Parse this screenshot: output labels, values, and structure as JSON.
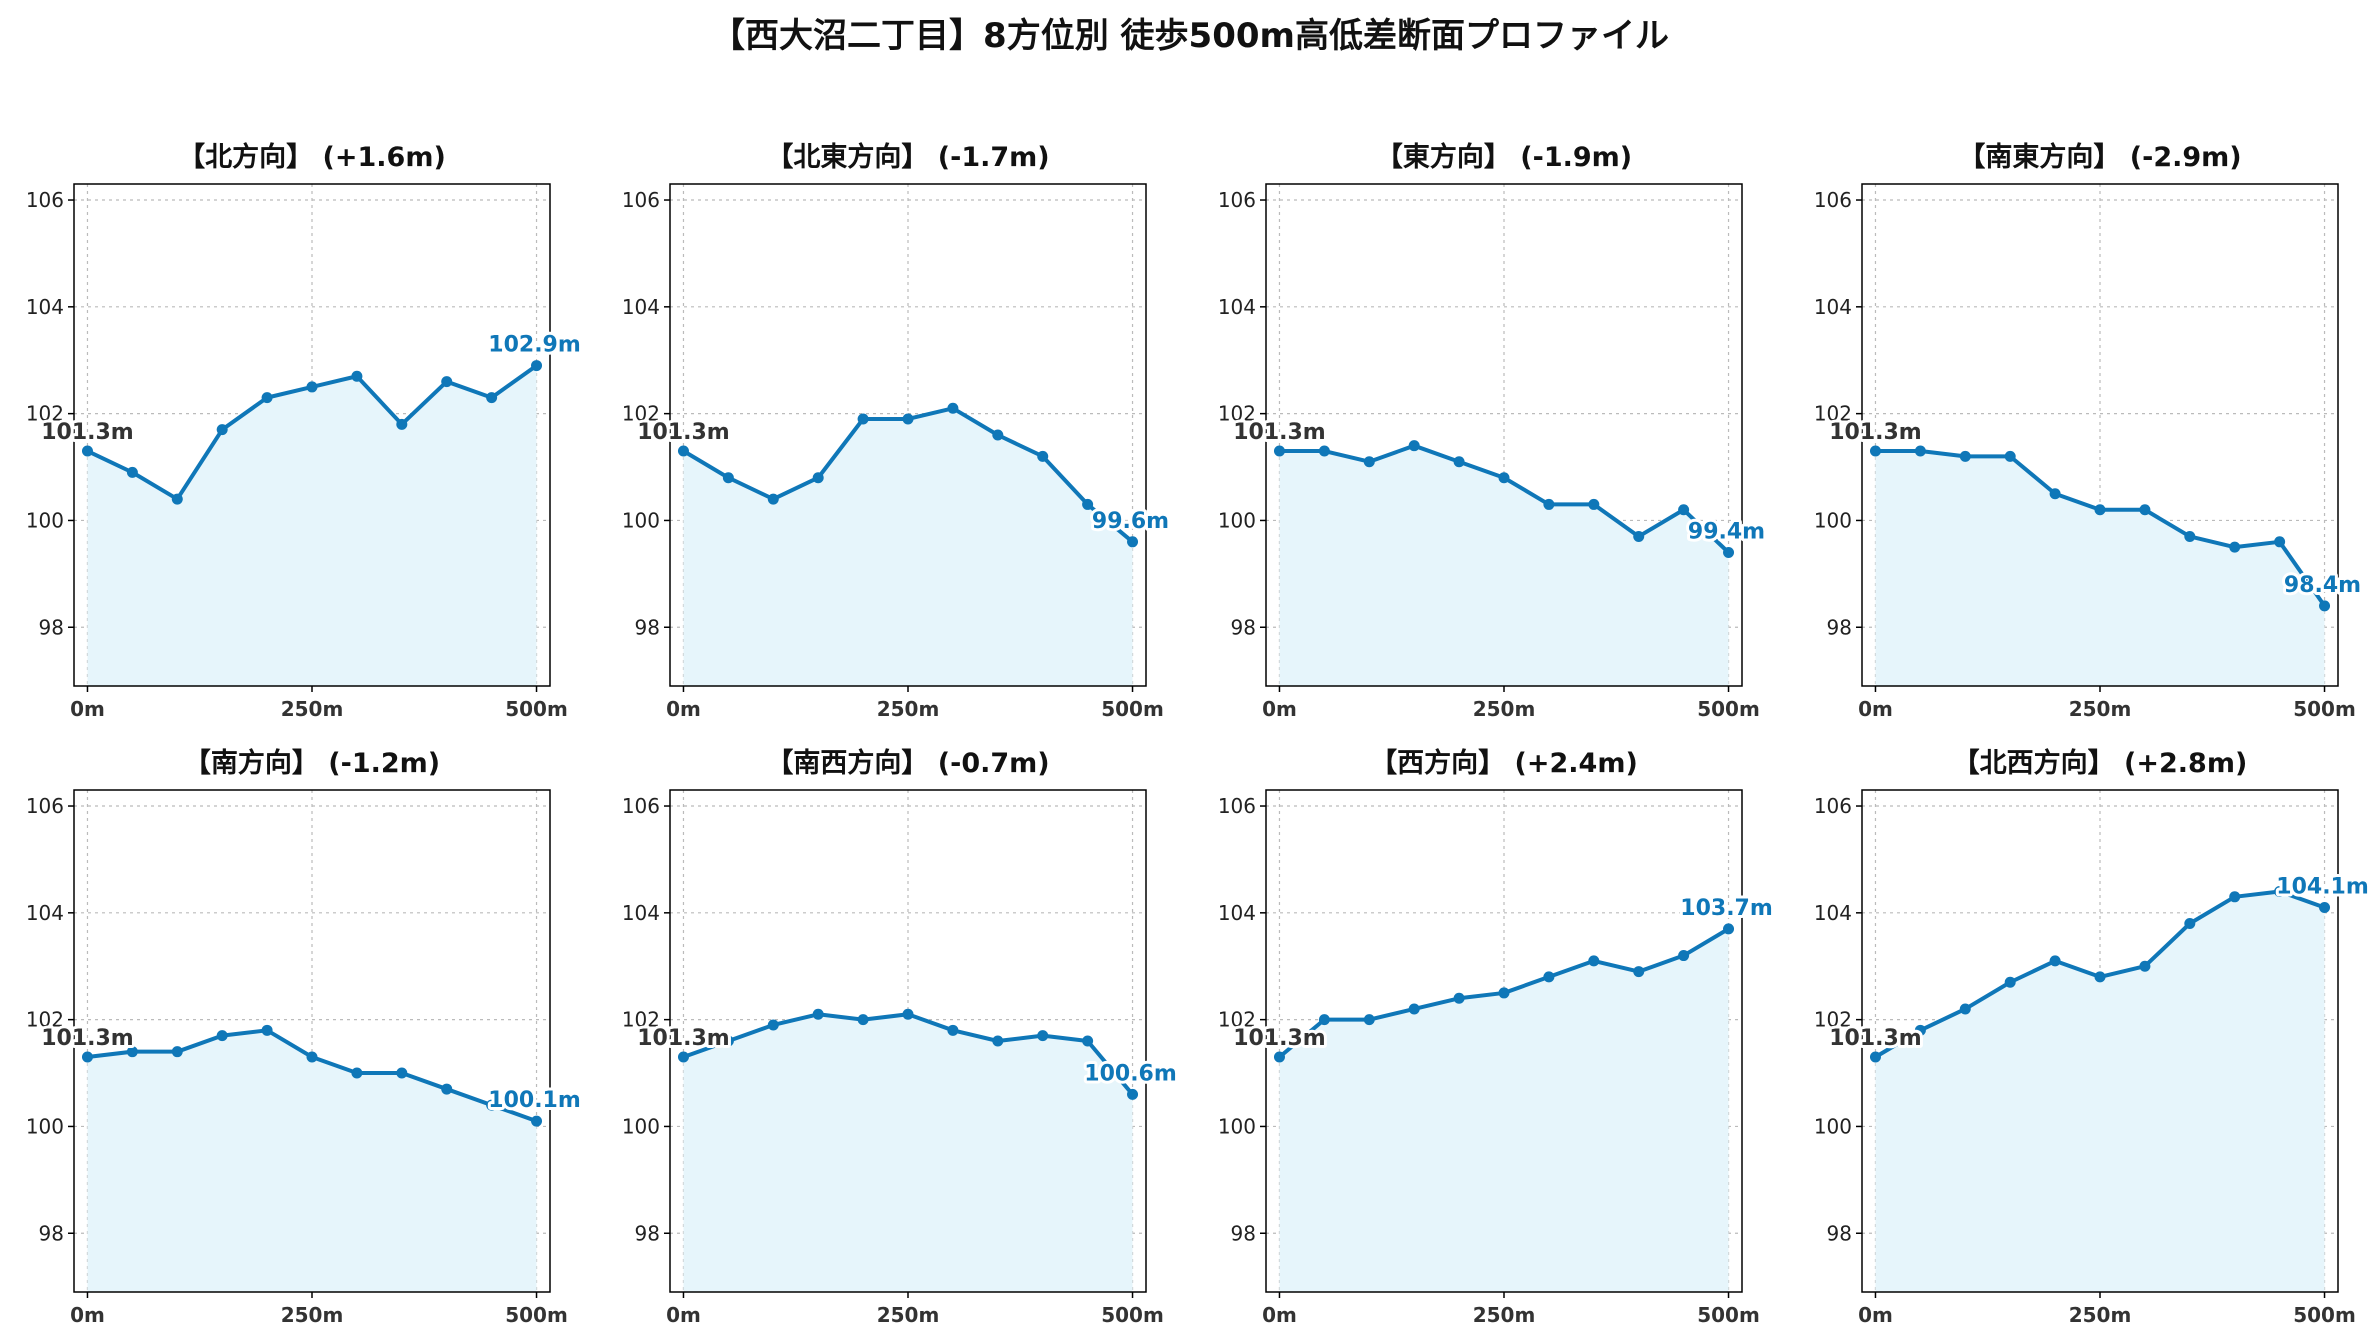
{
  "title": "【西大沼二丁目】8方位別 徒歩500m高低差断面プロファイル",
  "colors": {
    "line": "#0f77b8",
    "fill": "#e6f5fb",
    "grid": "#bbbbbb",
    "axis": "#000000"
  },
  "chart_data": [
    {
      "type": "area",
      "title": "【北方向】 (+1.6m)",
      "x": [
        0,
        50,
        100,
        150,
        200,
        250,
        300,
        350,
        400,
        450,
        500
      ],
      "values": [
        101.3,
        100.9,
        100.4,
        101.7,
        102.3,
        102.5,
        102.7,
        101.8,
        102.6,
        102.3,
        102.9
      ],
      "xticks": [
        "0m",
        "250m",
        "500m"
      ],
      "yticks": [
        "98",
        "100",
        "102",
        "104",
        "106"
      ],
      "xlim": [
        -15,
        515
      ],
      "ylim": [
        96.9,
        106.3
      ],
      "start_label": "101.3m",
      "end_label": "102.9m",
      "grid": true
    },
    {
      "type": "area",
      "title": "【北東方向】 (-1.7m)",
      "x": [
        0,
        50,
        100,
        150,
        200,
        250,
        300,
        350,
        400,
        450,
        500
      ],
      "values": [
        101.3,
        100.8,
        100.4,
        100.8,
        101.9,
        101.9,
        102.1,
        101.6,
        101.2,
        100.3,
        99.6
      ],
      "xticks": [
        "0m",
        "250m",
        "500m"
      ],
      "yticks": [
        "98",
        "100",
        "102",
        "104",
        "106"
      ],
      "xlim": [
        -15,
        515
      ],
      "ylim": [
        96.9,
        106.3
      ],
      "start_label": "101.3m",
      "end_label": "99.6m",
      "grid": true
    },
    {
      "type": "area",
      "title": "【東方向】 (-1.9m)",
      "x": [
        0,
        50,
        100,
        150,
        200,
        250,
        300,
        350,
        400,
        450,
        500
      ],
      "values": [
        101.3,
        101.3,
        101.1,
        101.4,
        101.1,
        100.8,
        100.3,
        100.3,
        99.7,
        100.2,
        99.4
      ],
      "xticks": [
        "0m",
        "250m",
        "500m"
      ],
      "yticks": [
        "98",
        "100",
        "102",
        "104",
        "106"
      ],
      "xlim": [
        -15,
        515
      ],
      "ylim": [
        96.9,
        106.3
      ],
      "start_label": "101.3m",
      "end_label": "99.4m",
      "grid": true
    },
    {
      "type": "area",
      "title": "【南東方向】 (-2.9m)",
      "x": [
        0,
        50,
        100,
        150,
        200,
        250,
        300,
        350,
        400,
        450,
        500
      ],
      "values": [
        101.3,
        101.3,
        101.2,
        101.2,
        100.5,
        100.2,
        100.2,
        99.7,
        99.5,
        99.6,
        98.4
      ],
      "xticks": [
        "0m",
        "250m",
        "500m"
      ],
      "yticks": [
        "98",
        "100",
        "102",
        "104",
        "106"
      ],
      "xlim": [
        -15,
        515
      ],
      "ylim": [
        96.9,
        106.3
      ],
      "start_label": "101.3m",
      "end_label": "98.4m",
      "grid": true
    },
    {
      "type": "area",
      "title": "【南方向】 (-1.2m)",
      "x": [
        0,
        50,
        100,
        150,
        200,
        250,
        300,
        350,
        400,
        450,
        500
      ],
      "values": [
        101.3,
        101.4,
        101.4,
        101.7,
        101.8,
        101.3,
        101.0,
        101.0,
        100.7,
        100.4,
        100.1
      ],
      "xticks": [
        "0m",
        "250m",
        "500m"
      ],
      "yticks": [
        "98",
        "100",
        "102",
        "104",
        "106"
      ],
      "xlim": [
        -15,
        515
      ],
      "ylim": [
        96.9,
        106.3
      ],
      "start_label": "101.3m",
      "end_label": "100.1m",
      "grid": true
    },
    {
      "type": "area",
      "title": "【南西方向】 (-0.7m)",
      "x": [
        0,
        50,
        100,
        150,
        200,
        250,
        300,
        350,
        400,
        450,
        500
      ],
      "values": [
        101.3,
        101.6,
        101.9,
        102.1,
        102.0,
        102.1,
        101.8,
        101.6,
        101.7,
        101.6,
        100.6
      ],
      "xticks": [
        "0m",
        "250m",
        "500m"
      ],
      "yticks": [
        "98",
        "100",
        "102",
        "104",
        "106"
      ],
      "xlim": [
        -15,
        515
      ],
      "ylim": [
        96.9,
        106.3
      ],
      "start_label": "101.3m",
      "end_label": "100.6m",
      "grid": true
    },
    {
      "type": "area",
      "title": "【西方向】 (+2.4m)",
      "x": [
        0,
        50,
        100,
        150,
        200,
        250,
        300,
        350,
        400,
        450,
        500
      ],
      "values": [
        101.3,
        102.0,
        102.0,
        102.2,
        102.4,
        102.5,
        102.8,
        103.1,
        102.9,
        103.2,
        103.7
      ],
      "xticks": [
        "0m",
        "250m",
        "500m"
      ],
      "yticks": [
        "98",
        "100",
        "102",
        "104",
        "106"
      ],
      "xlim": [
        -15,
        515
      ],
      "ylim": [
        96.9,
        106.3
      ],
      "start_label": "101.3m",
      "end_label": "103.7m",
      "grid": true
    },
    {
      "type": "area",
      "title": "【北西方向】 (+2.8m)",
      "x": [
        0,
        50,
        100,
        150,
        200,
        250,
        300,
        350,
        400,
        450,
        500
      ],
      "values": [
        101.3,
        101.8,
        102.2,
        102.7,
        103.1,
        102.8,
        103.0,
        103.8,
        104.3,
        104.4,
        104.1
      ],
      "xticks": [
        "0m",
        "250m",
        "500m"
      ],
      "yticks": [
        "98",
        "100",
        "102",
        "104",
        "106"
      ],
      "xlim": [
        -15,
        515
      ],
      "ylim": [
        96.9,
        106.3
      ],
      "start_label": "101.3m",
      "end_label": "104.1m",
      "grid": true
    }
  ]
}
